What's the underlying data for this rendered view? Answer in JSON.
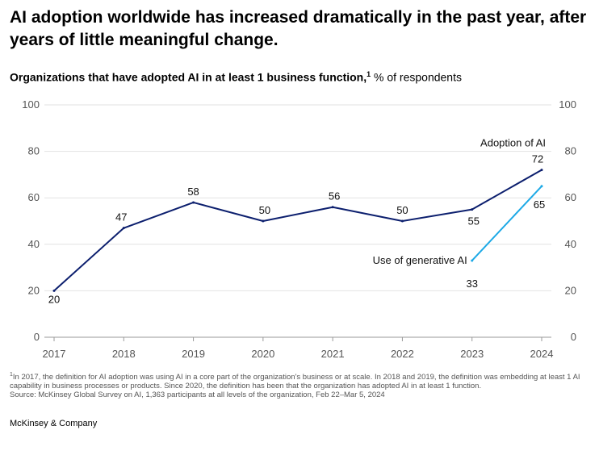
{
  "headline": "AI adoption worldwide has increased dramatically in the past year, after years of little meaningful change.",
  "subtitle": {
    "bold": "Organizations that have adopted AI in at least 1 business function,",
    "marker": "1",
    "unit": " % of respondents"
  },
  "footnote": {
    "marker": "1",
    "text": "In 2017, the definition for AI adoption was using AI in a core part of the organization's business or at scale. In 2018 and 2019, the definition was embedding at least 1 AI capability in business processes or products. Since 2020, the definition has been that the organization has adopted AI in at least 1 function.",
    "source": "Source: McKinsey Global Survey on AI, 1,363 participants at all levels of the organization, Feb 22–Mar 5, 2024"
  },
  "brand": "McKinsey & Company",
  "chart_data": {
    "type": "line",
    "title": "Organizations that have adopted AI in at least 1 business function",
    "ylabel": "% of respondents",
    "ylim": [
      0,
      100
    ],
    "yticks": [
      "0",
      "20",
      "40",
      "60",
      "80",
      "100"
    ],
    "x": [
      "2017",
      "2018",
      "2019",
      "2020",
      "2021",
      "2022",
      "2023",
      "2024"
    ],
    "grid": true,
    "series": [
      {
        "name": "Adoption of AI",
        "color": "#0c1f6e",
        "x": [
          "2017",
          "2018",
          "2019",
          "2020",
          "2021",
          "2022",
          "2023",
          "2024"
        ],
        "values": [
          20,
          47,
          58,
          50,
          56,
          50,
          55,
          72
        ],
        "labels": [
          "20",
          "47",
          "58",
          "50",
          "56",
          "50",
          "55",
          "72"
        ]
      },
      {
        "name": "Use of generative AI",
        "color": "#1da9e6",
        "x": [
          "2023",
          "2024"
        ],
        "values": [
          33,
          65
        ],
        "labels": [
          "33",
          "65"
        ]
      }
    ]
  }
}
